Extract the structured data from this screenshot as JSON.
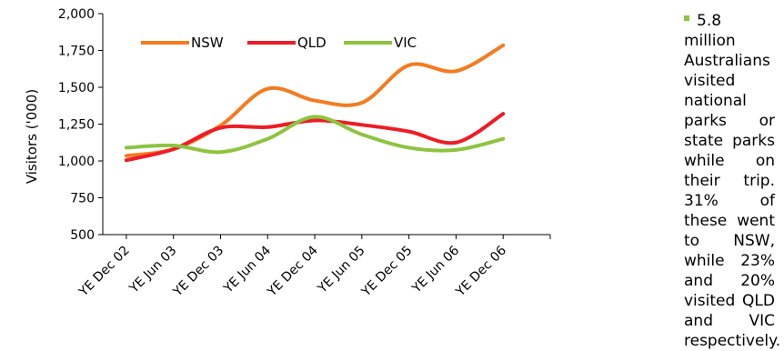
{
  "chart_data": {
    "type": "line",
    "ylabel": "Visitors ('000)",
    "ylim": [
      500,
      2000
    ],
    "yticks": [
      "2,000",
      "1,750",
      "1,500",
      "1,250",
      "1,000",
      "750",
      "500"
    ],
    "ytick_values": [
      2000,
      1750,
      1500,
      1250,
      1000,
      750,
      500
    ],
    "categories": [
      "YE Dec 02",
      "YE Jun 03",
      "YE Dec 03",
      "YE Jun 04",
      "YE Dec 04",
      "YE Jun 05",
      "YE Dec 05",
      "YE Jun 06",
      "YE Dec 06"
    ],
    "series": [
      {
        "name": "NSW",
        "color": "#f47b20",
        "values": [
          1035,
          1080,
          1240,
          1490,
          1410,
          1395,
          1650,
          1610,
          1785
        ]
      },
      {
        "name": "QLD",
        "color": "#ee1c25",
        "values": [
          1005,
          1080,
          1225,
          1230,
          1275,
          1245,
          1200,
          1125,
          1320
        ]
      },
      {
        "name": "VIC",
        "color": "#8cc43f",
        "values": [
          1090,
          1105,
          1060,
          1150,
          1300,
          1180,
          1090,
          1075,
          1150
        ]
      }
    ],
    "legend_position": "top"
  },
  "note": {
    "text": "5.8 million Australians visited national parks or state parks while on their trip. 31% of these went to NSW, while 23% and 20% visited QLD and VIC respectively."
  }
}
